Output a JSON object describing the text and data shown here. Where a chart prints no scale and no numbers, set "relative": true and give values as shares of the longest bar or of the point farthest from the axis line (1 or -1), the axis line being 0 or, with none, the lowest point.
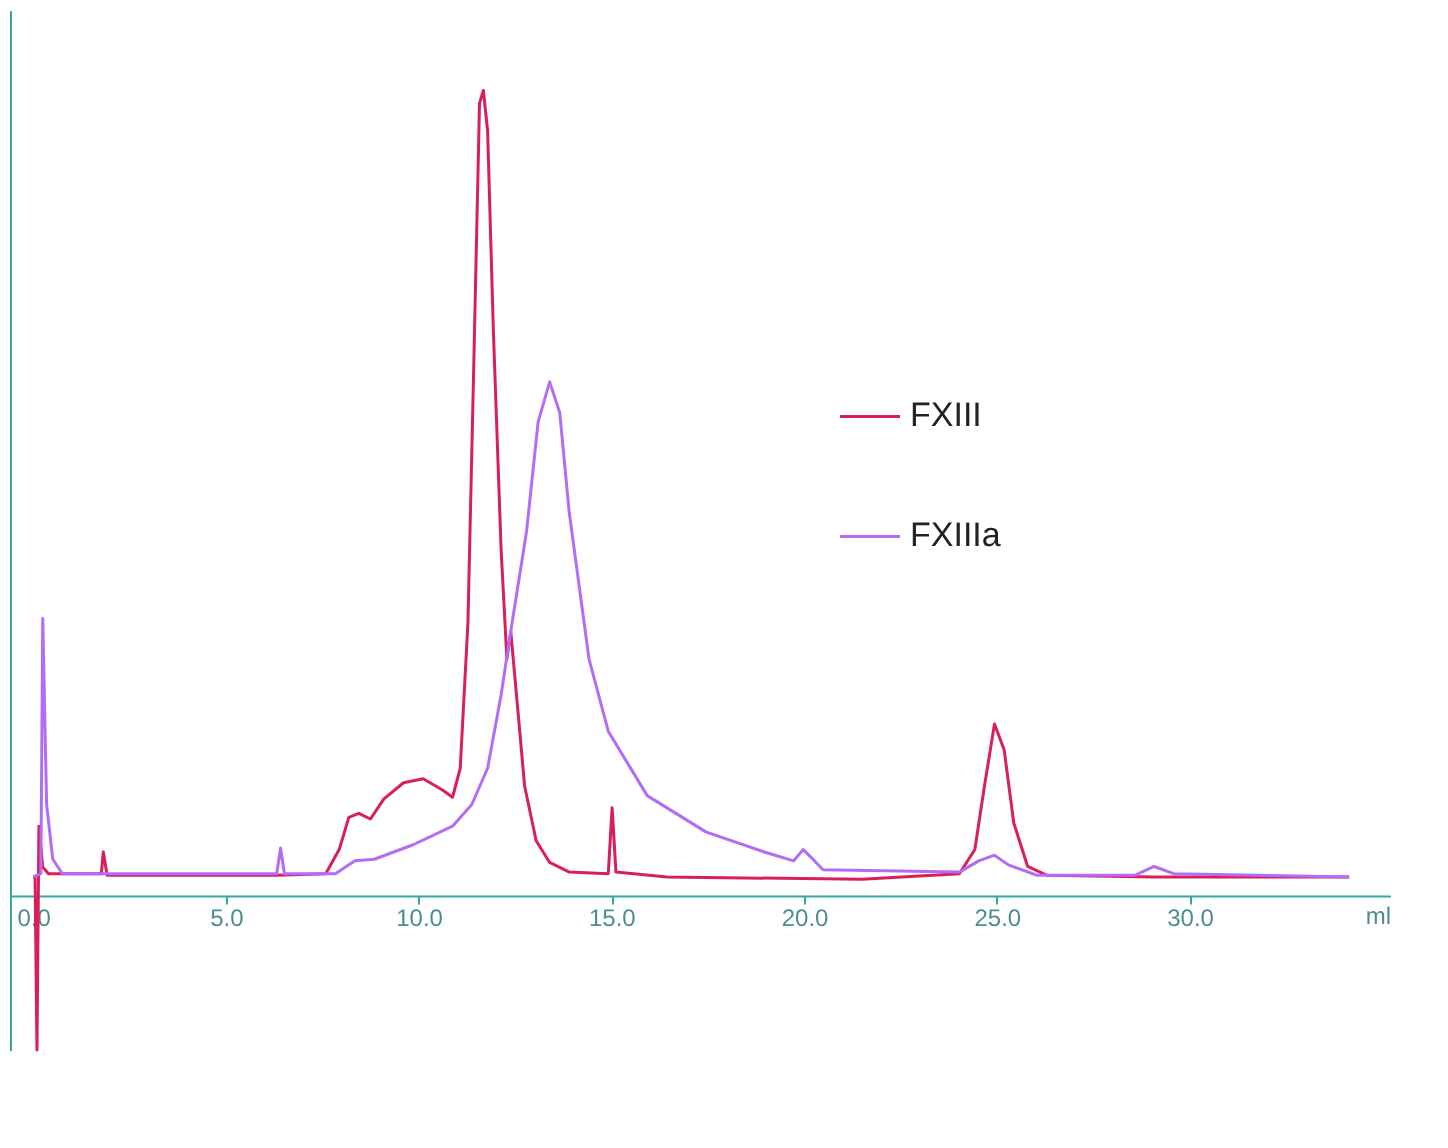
{
  "chart_data": {
    "type": "line",
    "relative": true,
    "xlabel": "ml",
    "xlim": [
      -0.6,
      35.2
    ],
    "xticks": [
      {
        "value": 0,
        "label": "0.0"
      },
      {
        "value": 5,
        "label": "5.0"
      },
      {
        "value": 10,
        "label": "10.0"
      },
      {
        "value": 15,
        "label": "15.0"
      },
      {
        "value": 20,
        "label": "20.0"
      },
      {
        "value": 25,
        "label": "25.0"
      },
      {
        "value": 30,
        "label": "30.0"
      }
    ],
    "grid": false,
    "legend": "right",
    "marker": "none",
    "line_style": "solid",
    "series": [
      {
        "name": "FXIII",
        "color": "#d81e5b",
        "x": [
          0,
          0.05,
          0.1,
          0.15,
          0.25,
          0.4,
          1.77,
          1.82,
          1.92,
          6.32,
          7.59,
          7.94,
          8.19,
          8.45,
          8.75,
          9.1,
          9.61,
          10.12,
          10.62,
          10.88,
          11.08,
          11.28,
          11.43,
          11.58,
          11.68,
          11.79,
          11.94,
          12.14,
          12.29,
          12.39,
          12.54,
          12.75,
          13.05,
          13.4,
          13.91,
          14.92,
          15.02,
          15.12,
          16.44,
          21.5,
          24.03,
          24.43,
          24.68,
          24.94,
          25.19,
          25.44,
          25.8,
          26.3,
          29.08,
          34.14
        ],
        "values": [
          0.023,
          0.023,
          -0.192,
          0.086,
          0.035,
          0.027,
          0.027,
          0.054,
          0.025,
          0.025,
          0.027,
          0.057,
          0.097,
          0.102,
          0.095,
          0.12,
          0.14,
          0.145,
          0.131,
          0.122,
          0.158,
          0.339,
          0.656,
          0.984,
          1,
          0.95,
          0.701,
          0.43,
          0.294,
          0.328,
          0.249,
          0.136,
          0.068,
          0.041,
          0.029,
          0.027,
          0.109,
          0.029,
          0.023,
          0.02,
          0.027,
          0.057,
          0.136,
          0.213,
          0.181,
          0.09,
          0.036,
          0.025,
          0.023,
          0.023
        ]
      },
      {
        "name": "FXIIIa",
        "color": "#b36cf5",
        "x": [
          0,
          0.2,
          0.25,
          0.35,
          0.51,
          0.76,
          6.32,
          6.42,
          6.52,
          7.84,
          8.35,
          8.85,
          9.86,
          10.88,
          11.38,
          11.79,
          12.14,
          12.39,
          12.8,
          13.1,
          13.4,
          13.66,
          13.91,
          14.42,
          14.92,
          15.93,
          17.45,
          18.97,
          19.73,
          19.98,
          20.23,
          20.49,
          24.03,
          24.53,
          24.94,
          25.3,
          26.05,
          28.58,
          29.08,
          29.59,
          34.14
        ],
        "values": [
          0.023,
          0.027,
          0.344,
          0.113,
          0.045,
          0.027,
          0.027,
          0.059,
          0.027,
          0.027,
          0.043,
          0.045,
          0.063,
          0.086,
          0.113,
          0.158,
          0.249,
          0.328,
          0.452,
          0.588,
          0.638,
          0.6,
          0.475,
          0.294,
          0.204,
          0.124,
          0.079,
          0.054,
          0.043,
          0.057,
          0.045,
          0.032,
          0.029,
          0.043,
          0.05,
          0.038,
          0.025,
          0.025,
          0.036,
          0.027,
          0.023
        ]
      }
    ]
  }
}
